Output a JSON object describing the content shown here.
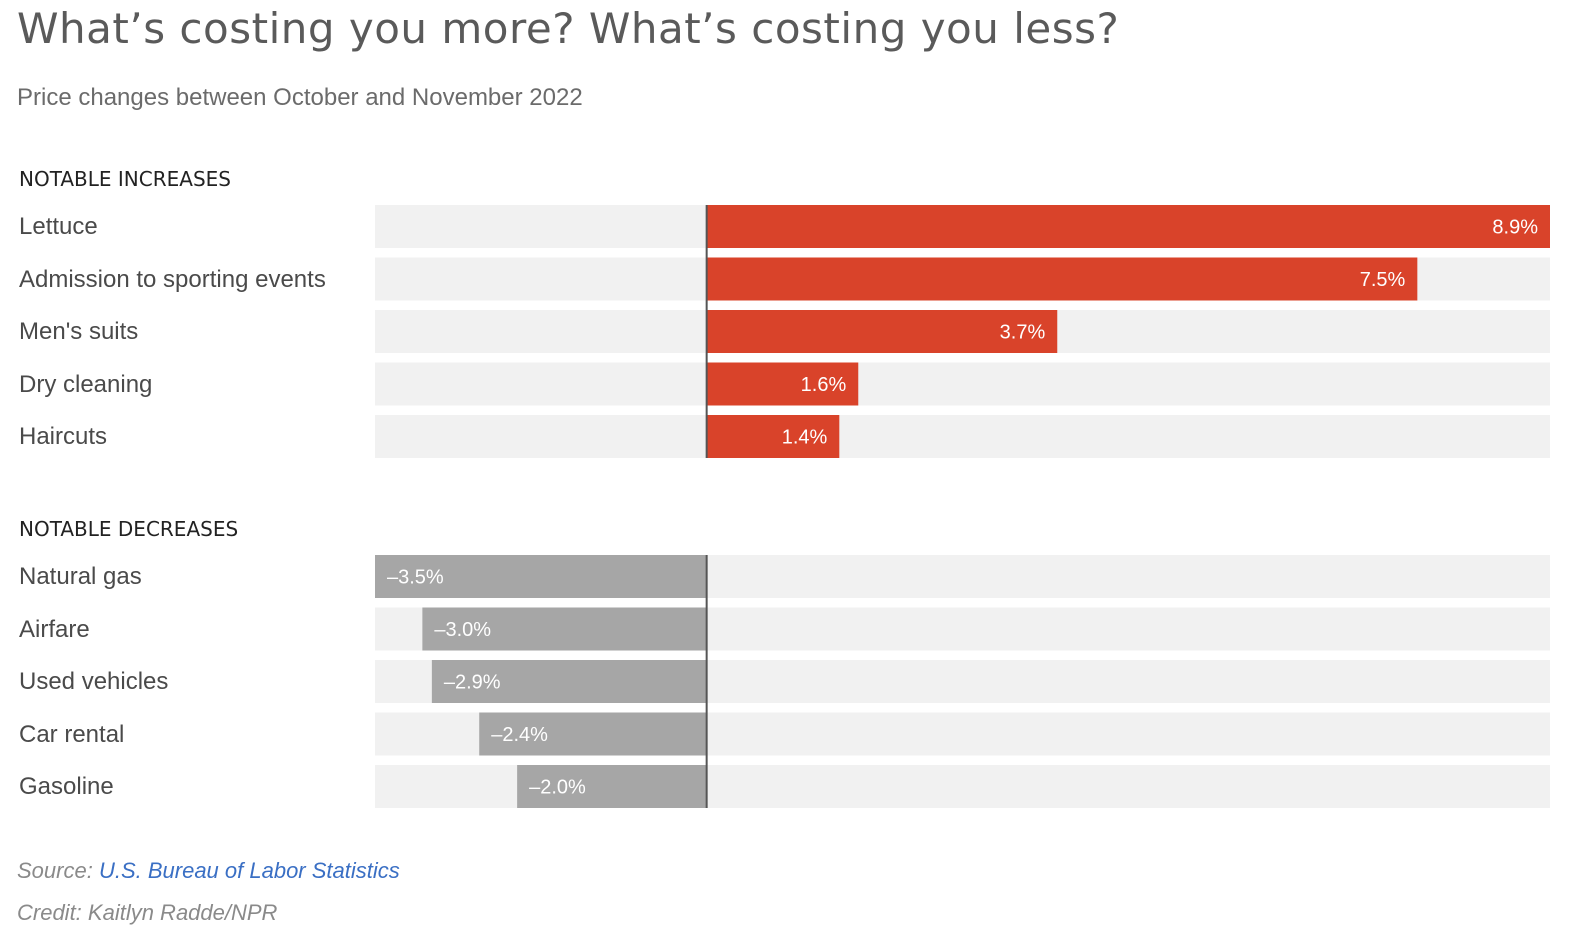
{
  "title": "What’s costing you more? What’s costing you less?",
  "subtitle": "Price changes between October and November 2022",
  "source_label": "Source:",
  "source_link": "U.S. Bureau of Labor Statistics",
  "credit": "Credit: Kaitlyn Radde/NPR",
  "colors": {
    "increase": "#d9432a",
    "decrease": "#a6a6a6",
    "track": "#f1f1f1",
    "zero_line": "#555555"
  },
  "chart_data": {
    "type": "bar",
    "orientation": "horizontal",
    "title": "What’s costing you more? What’s costing you less?",
    "subtitle": "Price changes between October and November 2022",
    "xlabel": "",
    "ylabel": "",
    "xlim": [
      -3.5,
      8.9
    ],
    "unit": "%",
    "grid": false,
    "groups": [
      {
        "name": "NOTABLE INCREASES",
        "categories": [
          "Lettuce",
          "Admission to sporting events",
          "Men's suits",
          "Dry cleaning",
          "Haircuts"
        ],
        "values": [
          8.9,
          7.5,
          3.7,
          1.6,
          1.4
        ],
        "labels": [
          "8.9%",
          "7.5%",
          "3.7%",
          "1.6%",
          "1.4%"
        ]
      },
      {
        "name": "NOTABLE DECREASES",
        "categories": [
          "Natural gas",
          "Airfare",
          "Used vehicles",
          "Car rental",
          "Gasoline"
        ],
        "values": [
          -3.5,
          -3.0,
          -2.9,
          -2.4,
          -2.0
        ],
        "labels": [
          "–3.5%",
          "–3.0%",
          "–2.9%",
          "–2.4%",
          "–2.0%"
        ]
      }
    ]
  }
}
